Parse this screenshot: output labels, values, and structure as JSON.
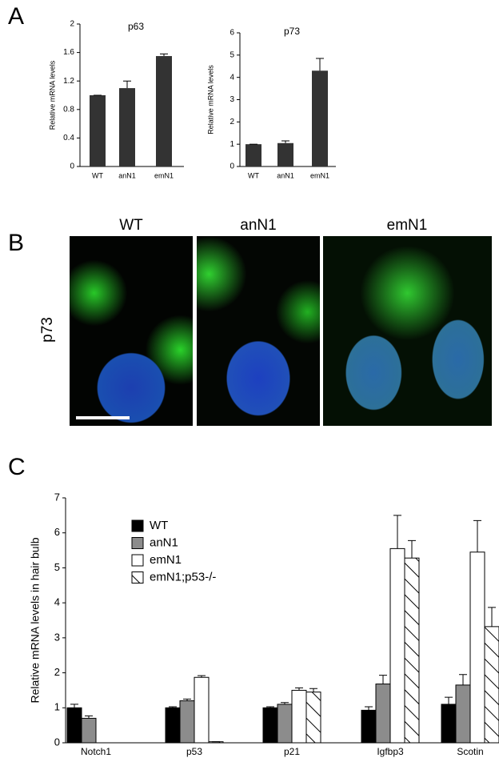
{
  "panel_labels": [
    "A",
    "B",
    "C"
  ],
  "image_panel": {
    "columns": [
      "WT",
      "anN1",
      "emN1"
    ],
    "row_label": "p73"
  },
  "chart_data": [
    {
      "type": "bar",
      "title": "p63",
      "ylabel": "Relative mRNA levels",
      "categories": [
        "WT",
        "anN1",
        "emN1"
      ],
      "values": [
        1.0,
        1.1,
        1.55
      ],
      "errors": [
        0,
        0.1,
        0.03
      ],
      "color": "#333333",
      "ylim": [
        0,
        2
      ],
      "yticks": [
        0,
        0.4,
        0.8,
        1.2,
        1.6,
        2
      ]
    },
    {
      "type": "bar",
      "title": "p73",
      "ylabel": "Relative mRNA levels",
      "categories": [
        "WT",
        "anN1",
        "emN1"
      ],
      "values": [
        1.0,
        1.05,
        4.3
      ],
      "errors": [
        0,
        0.1,
        0.55
      ],
      "color": "#333333",
      "ylim": [
        0,
        6
      ],
      "yticks": [
        0,
        1,
        2,
        3,
        4,
        5,
        6
      ]
    },
    {
      "type": "grouped_bar",
      "ylabel": "Relative mRNA levels in hair bulb",
      "categories": [
        "Notch1",
        "p53",
        "p21",
        "Igfbp3",
        "Scotin"
      ],
      "series": [
        {
          "name": "WT",
          "color": "#000000",
          "hatch": false,
          "values": [
            1.0,
            1.0,
            1.0,
            0.93,
            1.1
          ],
          "errors": [
            0.1,
            0.03,
            0.03,
            0.1,
            0.2
          ]
        },
        {
          "name": "anN1",
          "color": "#8c8c8c",
          "hatch": false,
          "values": [
            0.7,
            1.2,
            1.1,
            1.68,
            1.65
          ],
          "errors": [
            0.07,
            0.05,
            0.05,
            0.25,
            0.3
          ]
        },
        {
          "name": "emN1",
          "color": "#ffffff",
          "hatch": false,
          "values": [
            null,
            1.87,
            1.5,
            5.55,
            5.45
          ],
          "errors": [
            null,
            0.05,
            0.07,
            0.95,
            0.9
          ]
        },
        {
          "name": "emN1;p53-/-",
          "color": "#ffffff",
          "hatch": true,
          "values": [
            null,
            0.03,
            1.45,
            5.28,
            3.32
          ],
          "errors": [
            null,
            0,
            0.1,
            0.5,
            0.55
          ]
        }
      ],
      "ylim": [
        0,
        7
      ],
      "yticks": [
        0,
        1,
        2,
        3,
        4,
        5,
        6,
        7
      ]
    }
  ]
}
